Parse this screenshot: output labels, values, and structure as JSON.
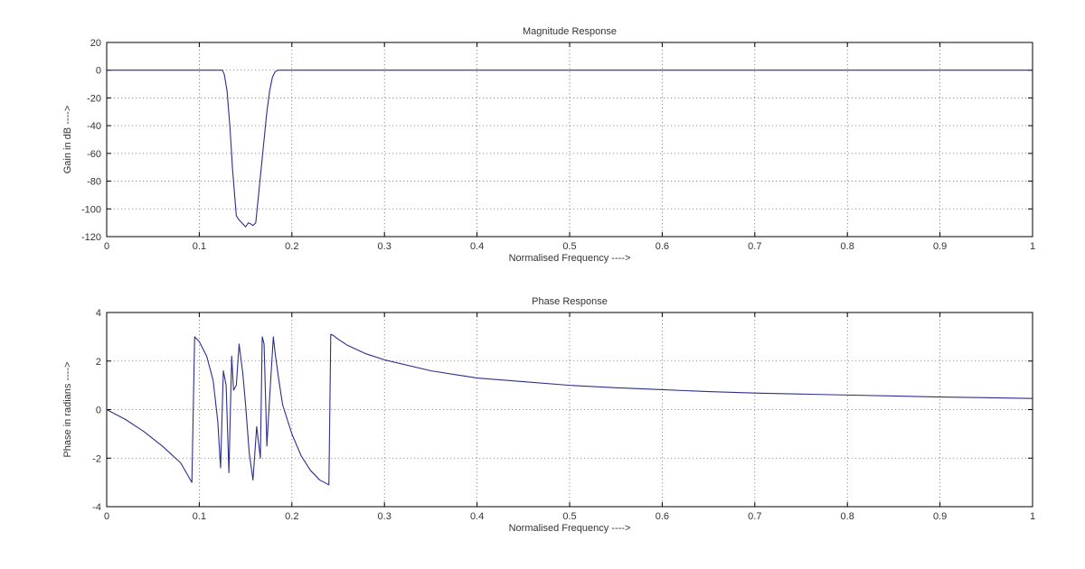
{
  "chart_data": [
    {
      "type": "line",
      "title": "Magnitude Response",
      "xlabel": "Normalised Frequency ---->",
      "ylabel": "Gain in dB ---->",
      "xlim": [
        0,
        1
      ],
      "ylim": [
        -120,
        20
      ],
      "xticks": [
        0,
        0.1,
        0.2,
        0.3,
        0.4,
        0.5,
        0.6,
        0.7,
        0.8,
        0.9,
        1
      ],
      "yticks": [
        20,
        0,
        -20,
        -40,
        -60,
        -80,
        -100,
        -120
      ],
      "grid": true,
      "line_color": "#2b2f8c",
      "series": [
        {
          "x": [
            0,
            0.125,
            0.127,
            0.13,
            0.133,
            0.136,
            0.14,
            0.143,
            0.146,
            0.15,
            0.153,
            0.156,
            0.158,
            0.161,
            0.164,
            0.167,
            0.17,
            0.173,
            0.176,
            0.179,
            0.182,
            0.185,
            1
          ],
          "y": [
            0,
            0,
            -3,
            -15,
            -40,
            -72,
            -105,
            -108,
            -110,
            -113,
            -110,
            -111,
            -112,
            -110,
            -90,
            -70,
            -50,
            -30,
            -15,
            -5,
            -1,
            0,
            0
          ]
        }
      ]
    },
    {
      "type": "line",
      "title": "Phase Response",
      "xlabel": "Normalised Frequency ---->",
      "ylabel": "Phase in radians ---->",
      "xlim": [
        0,
        1
      ],
      "ylim": [
        -4,
        4
      ],
      "xticks": [
        0,
        0.1,
        0.2,
        0.3,
        0.4,
        0.5,
        0.6,
        0.7,
        0.8,
        0.9,
        1
      ],
      "yticks": [
        4,
        2,
        0,
        -2,
        -4
      ],
      "grid": true,
      "line_color": "#2b2f8c",
      "series": [
        {
          "x": [
            0,
            0.02,
            0.04,
            0.06,
            0.08,
            0.092,
            0.095,
            0.1,
            0.108,
            0.115,
            0.12,
            0.123,
            0.126,
            0.129,
            0.132,
            0.135,
            0.137,
            0.14,
            0.143,
            0.147,
            0.15,
            0.154,
            0.158,
            0.162,
            0.166,
            0.168,
            0.17,
            0.173,
            0.176,
            0.18,
            0.182,
            0.186,
            0.19,
            0.2,
            0.21,
            0.22,
            0.23,
            0.24,
            0.242,
            0.245,
            0.25,
            0.26,
            0.28,
            0.3,
            0.35,
            0.4,
            0.45,
            0.5,
            0.55,
            0.6,
            0.65,
            0.7,
            0.75,
            0.8,
            0.85,
            0.9,
            0.95,
            1
          ],
          "y": [
            0,
            -0.4,
            -0.9,
            -1.5,
            -2.2,
            -3.0,
            3.0,
            2.8,
            2.2,
            1.2,
            -0.5,
            -2.4,
            1.6,
            1.0,
            -2.6,
            2.2,
            0.8,
            1.0,
            2.7,
            1.5,
            0.2,
            -1.8,
            -2.9,
            -0.7,
            -2.0,
            3.0,
            2.7,
            -1.5,
            0.5,
            3.0,
            2.3,
            1.2,
            0.2,
            -1.0,
            -1.9,
            -2.5,
            -2.9,
            -3.1,
            3.1,
            3.05,
            2.9,
            2.65,
            2.3,
            2.05,
            1.6,
            1.3,
            1.15,
            1.0,
            0.9,
            0.82,
            0.74,
            0.68,
            0.64,
            0.6,
            0.56,
            0.52,
            0.49,
            0.46
          ]
        }
      ]
    }
  ]
}
